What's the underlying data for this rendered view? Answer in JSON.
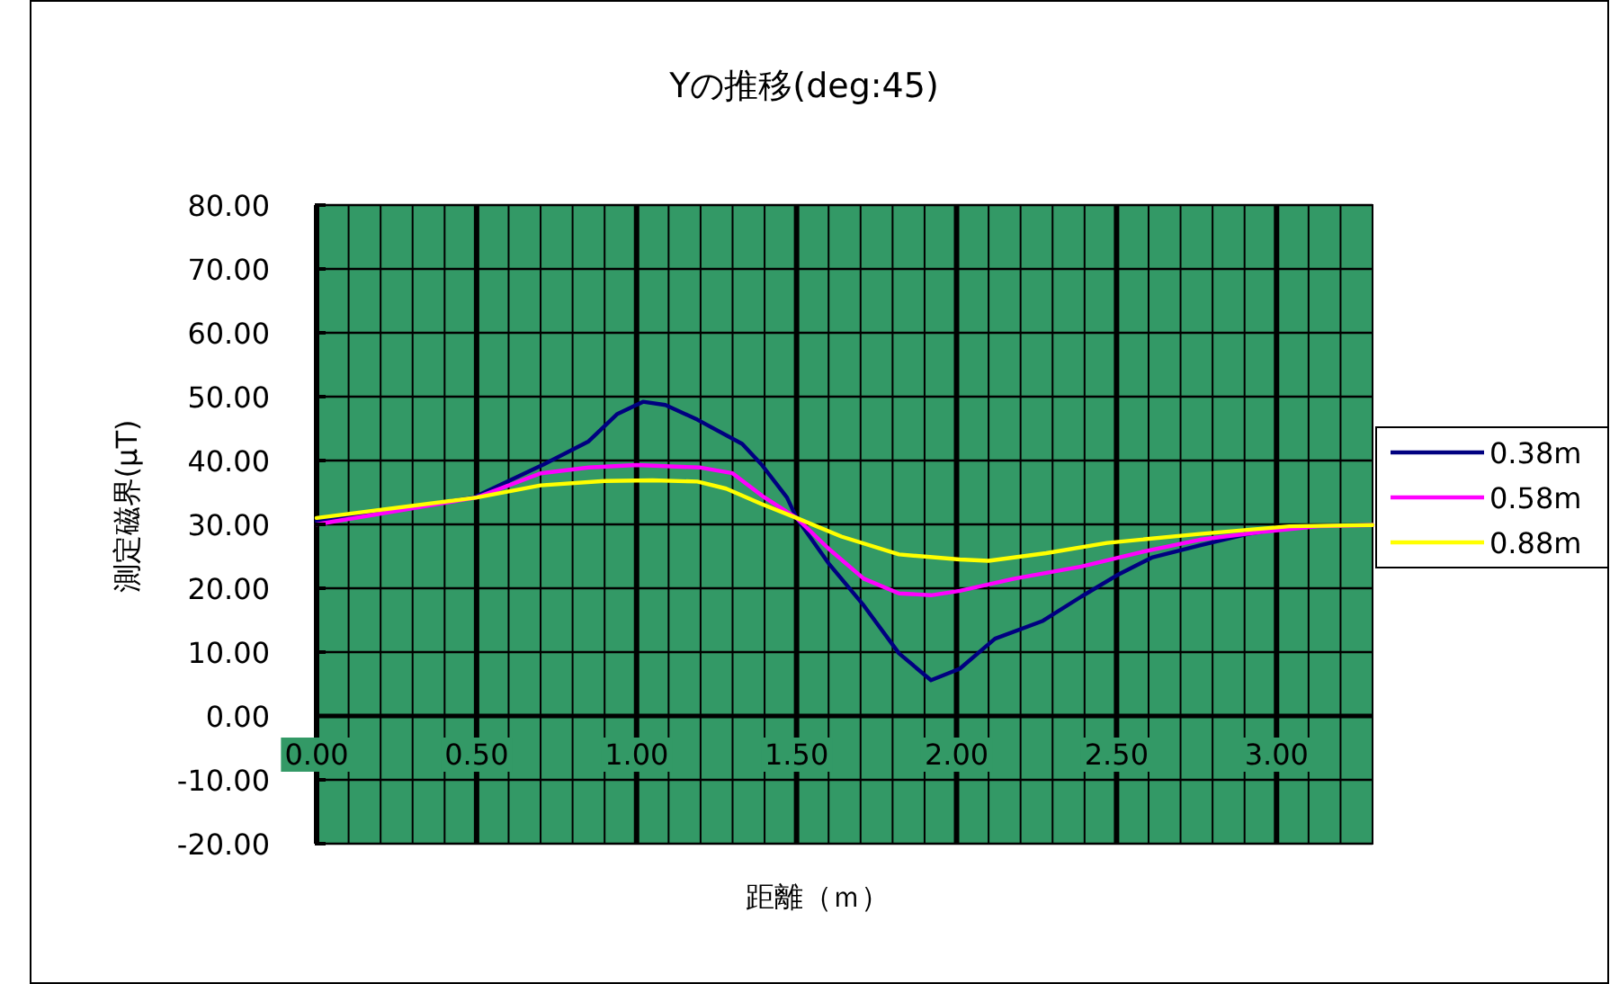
{
  "chart_data": {
    "type": "line",
    "title": "Yの推移(deg:45)",
    "xlabel": "距離（ｍ）",
    "ylabel": "測定磁界(μT)",
    "xlim": [
      0,
      3.3
    ],
    "ylim": [
      -20,
      80
    ],
    "xticks": [
      {
        "value": 0,
        "label": "0.00"
      },
      {
        "value": 0.5,
        "label": "0.50"
      },
      {
        "value": 1,
        "label": "1.00"
      },
      {
        "value": 1.5,
        "label": "1.50"
      },
      {
        "value": 2,
        "label": "2.00"
      },
      {
        "value": 2.5,
        "label": "2.50"
      },
      {
        "value": 3,
        "label": "3.00"
      }
    ],
    "yticks": [
      {
        "value": -20,
        "label": "-20.00"
      },
      {
        "value": -10,
        "label": "-10.00"
      },
      {
        "value": 0,
        "label": "0.00"
      },
      {
        "value": 10,
        "label": "10.00"
      },
      {
        "value": 20,
        "label": "20.00"
      },
      {
        "value": 30,
        "label": "30.00"
      },
      {
        "value": 40,
        "label": "40.00"
      },
      {
        "value": 50,
        "label": "50.00"
      },
      {
        "value": 60,
        "label": "60.00"
      },
      {
        "value": 70,
        "label": "70.00"
      },
      {
        "value": 80,
        "label": "80.00"
      }
    ],
    "grid": true,
    "legend": "right",
    "marker": "none",
    "line_style": "solid",
    "series": [
      {
        "name": "0.38m",
        "color": "#000080",
        "x": [
          0,
          0.49,
          0.71,
          0.85,
          0.94,
          1.02,
          1.09,
          1.19,
          1.33,
          1.39,
          1.47,
          1.5,
          1.6,
          1.71,
          1.82,
          1.92,
          2.01,
          2.12,
          2.27,
          2.39,
          2.5,
          2.61,
          2.76,
          2.91,
          3.06,
          3.3
        ],
        "values": [
          30.5,
          34.2,
          39.4,
          43,
          47.3,
          49.2,
          48.7,
          46.4,
          42.6,
          39.4,
          34.2,
          31,
          23.9,
          17.3,
          9.8,
          5.6,
          7.4,
          12.1,
          14.9,
          18.7,
          22,
          24.8,
          26.7,
          28.5,
          29.7,
          29.9
        ]
      },
      {
        "name": "0.58m",
        "color": "#ff00ff",
        "x": [
          0,
          0.5,
          0.7,
          0.85,
          1.0,
          1.2,
          1.3,
          1.4,
          1.5,
          1.6,
          1.71,
          1.82,
          1.92,
          2.01,
          2.18,
          2.39,
          2.58,
          2.76,
          2.95,
          3.13,
          3.3
        ],
        "values": [
          30,
          34.2,
          38,
          38.9,
          39.3,
          38.9,
          38,
          34.2,
          31,
          26.2,
          21.5,
          19.2,
          18.9,
          19.6,
          21.5,
          23.4,
          25.7,
          27.6,
          28.8,
          29.7,
          29.9
        ]
      },
      {
        "name": "0.88m",
        "color": "#ffff00",
        "x": [
          0,
          0.5,
          0.7,
          0.9,
          1.05,
          1.19,
          1.28,
          1.39,
          1.5,
          1.64,
          1.82,
          2.01,
          2.1,
          2.28,
          2.47,
          2.76,
          3.04,
          3.3
        ],
        "values": [
          31,
          34.2,
          36.1,
          36.8,
          36.9,
          36.7,
          35.6,
          33.2,
          31,
          28.1,
          25.3,
          24.5,
          24.3,
          25.5,
          27.1,
          28.5,
          29.7,
          29.9
        ]
      }
    ]
  }
}
